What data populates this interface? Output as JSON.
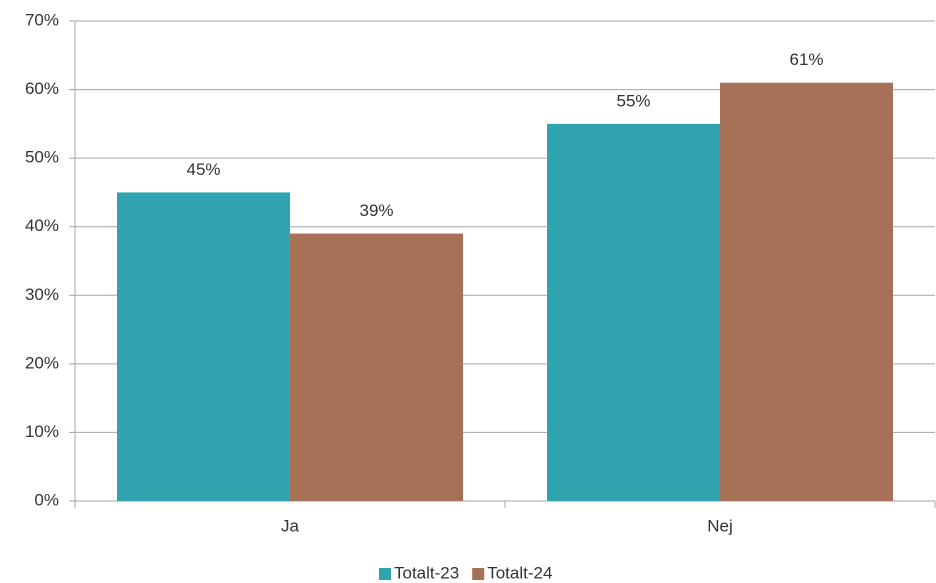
{
  "chart_data": {
    "type": "bar",
    "categories": [
      "Ja",
      "Nej"
    ],
    "series": [
      {
        "name": "Totalt-23",
        "color": "#31a3ae",
        "values": [
          45,
          55
        ],
        "value_labels": [
          "45%",
          "55%"
        ]
      },
      {
        "name": "Totalt-24",
        "color": "#a67157",
        "values": [
          39,
          61
        ],
        "value_labels": [
          "39%",
          "61%"
        ]
      }
    ],
    "ylim": [
      0,
      70
    ],
    "yticks": [
      {
        "value": 0,
        "label": "0%"
      },
      {
        "value": 10,
        "label": "10%"
      },
      {
        "value": 20,
        "label": "20%"
      },
      {
        "value": 30,
        "label": "30%"
      },
      {
        "value": 40,
        "label": "40%"
      },
      {
        "value": 50,
        "label": "50%"
      },
      {
        "value": 60,
        "label": "60%"
      },
      {
        "value": 70,
        "label": "70%"
      }
    ],
    "grid": true,
    "legend": "bottom"
  }
}
